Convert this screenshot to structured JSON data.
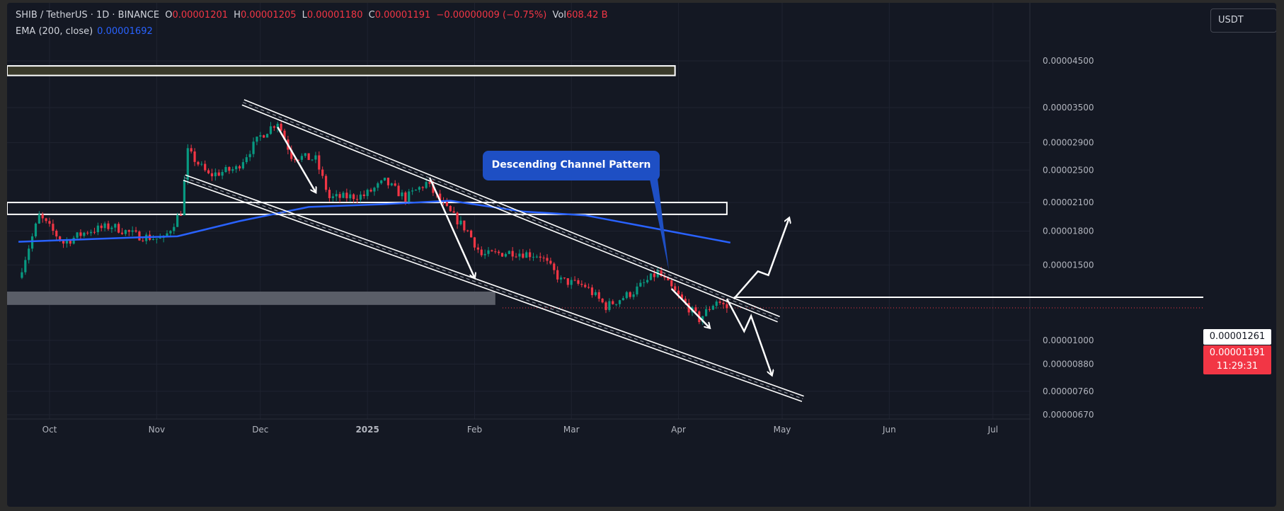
{
  "header": {
    "symbol": "SHIB / TetherUS · 1D · BINANCE",
    "o_label": "O",
    "o_value": "0.00001201",
    "h_label": "H",
    "h_value": "0.00001205",
    "l_label": "L",
    "l_value": "0.00001180",
    "c_label": "C",
    "c_value": "0.00001191",
    "change": "−0.00000009 (−0.75%)",
    "vol_label": "Vol",
    "vol_value": "608.42 B"
  },
  "indicator": {
    "label": "EMA (200, close)",
    "value": "0.00001692"
  },
  "currency_button": "USDT",
  "annotation": "Descending Channel Pattern",
  "price_tags": {
    "level": "0.00001261",
    "last": "0.00001191",
    "countdown": "11:29:31"
  },
  "colors": {
    "up": "#089981",
    "down": "#f23645",
    "ema": "#2962ff",
    "background": "#141823"
  },
  "chart_data": {
    "type": "candlestick",
    "symbol": "SHIB/USDT",
    "interval": "1D",
    "x_ticks": [
      "Oct",
      "Nov",
      "Dec",
      "2025",
      "Feb",
      "Mar",
      "Apr",
      "May",
      "Jun",
      "Jul"
    ],
    "y_ticks": [
      "0.00004500",
      "0.00003500",
      "0.00002900",
      "0.00002500",
      "0.00002100",
      "0.00001800",
      "0.00001500",
      "0.00001000",
      "0.00000880",
      "0.00000760",
      "0.00000670"
    ],
    "y_scale": "log",
    "grid": true,
    "close_series": [
      {
        "date": "2024-09-22",
        "close": 1.4e-05
      },
      {
        "date": "2024-09-28",
        "close": 1.95e-05
      },
      {
        "date": "2024-10-05",
        "close": 1.69e-05
      },
      {
        "date": "2024-10-12",
        "close": 1.8e-05
      },
      {
        "date": "2024-10-19",
        "close": 1.85e-05
      },
      {
        "date": "2024-10-26",
        "close": 1.76e-05
      },
      {
        "date": "2024-11-03",
        "close": 1.72e-05
      },
      {
        "date": "2024-11-08",
        "close": 2e-05
      },
      {
        "date": "2024-11-10",
        "close": 2.76e-05
      },
      {
        "date": "2024-11-16",
        "close": 2.43e-05
      },
      {
        "date": "2024-11-24",
        "close": 2.52e-05
      },
      {
        "date": "2024-12-01",
        "close": 3e-05
      },
      {
        "date": "2024-12-06",
        "close": 3.25e-05
      },
      {
        "date": "2024-12-10",
        "close": 2.7e-05
      },
      {
        "date": "2024-12-17",
        "close": 2.65e-05
      },
      {
        "date": "2024-12-21",
        "close": 2.15e-05
      },
      {
        "date": "2024-12-31",
        "close": 2.18e-05
      },
      {
        "date": "2025-01-06",
        "close": 2.35e-05
      },
      {
        "date": "2025-01-12",
        "close": 2.15e-05
      },
      {
        "date": "2025-01-18",
        "close": 2.33e-05
      },
      {
        "date": "2025-01-24",
        "close": 2.02e-05
      },
      {
        "date": "2025-01-30",
        "close": 1.8e-05
      },
      {
        "date": "2025-02-03",
        "close": 1.58e-05
      },
      {
        "date": "2025-02-12",
        "close": 1.61e-05
      },
      {
        "date": "2025-02-20",
        "close": 1.58e-05
      },
      {
        "date": "2025-02-26",
        "close": 1.38e-05
      },
      {
        "date": "2025-03-05",
        "close": 1.34e-05
      },
      {
        "date": "2025-03-11",
        "close": 1.2e-05
      },
      {
        "date": "2025-03-19",
        "close": 1.3e-05
      },
      {
        "date": "2025-03-26",
        "close": 1.44e-05
      },
      {
        "date": "2025-04-02",
        "close": 1.24e-05
      },
      {
        "date": "2025-04-07",
        "close": 1.12e-05
      },
      {
        "date": "2025-04-12",
        "close": 1.24e-05
      },
      {
        "date": "2025-04-15",
        "close": 1.191e-05
      }
    ],
    "ema_200": [
      {
        "date": "2024-09-22",
        "value": 1.7e-05
      },
      {
        "date": "2024-10-26",
        "value": 1.74e-05
      },
      {
        "date": "2024-11-07",
        "value": 1.75e-05
      },
      {
        "date": "2024-11-25",
        "value": 1.9e-05
      },
      {
        "date": "2024-12-15",
        "value": 2.05e-05
      },
      {
        "date": "2025-01-05",
        "value": 2.08e-05
      },
      {
        "date": "2025-01-25",
        "value": 2.12e-05
      },
      {
        "date": "2025-02-15",
        "value": 2e-05
      },
      {
        "date": "2025-03-05",
        "value": 1.96e-05
      },
      {
        "date": "2025-04-16",
        "value": 1.692e-05
      }
    ],
    "descending_channel": {
      "upper": [
        {
          "date": "2024-11-26",
          "price": 3.6e-05
        },
        {
          "date": "2025-04-30",
          "price": 1.12e-05
        }
      ],
      "lower": [
        {
          "date": "2024-11-09",
          "price": 2.4e-05
        },
        {
          "date": "2025-05-07",
          "price": 7.3e-06
        }
      ]
    },
    "zones": [
      {
        "type": "resistance",
        "from": "2024-09-15",
        "to": "2025-03-31",
        "top": 4.38e-05,
        "bottom": 4.16e-05
      },
      {
        "type": "support/resistance",
        "from": "2024-09-15",
        "to": "2025-04-15",
        "top": 2.1e-05,
        "bottom": 1.97e-05
      },
      {
        "type": "support",
        "from": "2024-09-15",
        "to": "2025-02-07",
        "top": 1.3e-05,
        "bottom": 1.21e-05
      }
    ],
    "horizontal_levels": [
      1.261e-05,
      1.191e-05
    ]
  }
}
